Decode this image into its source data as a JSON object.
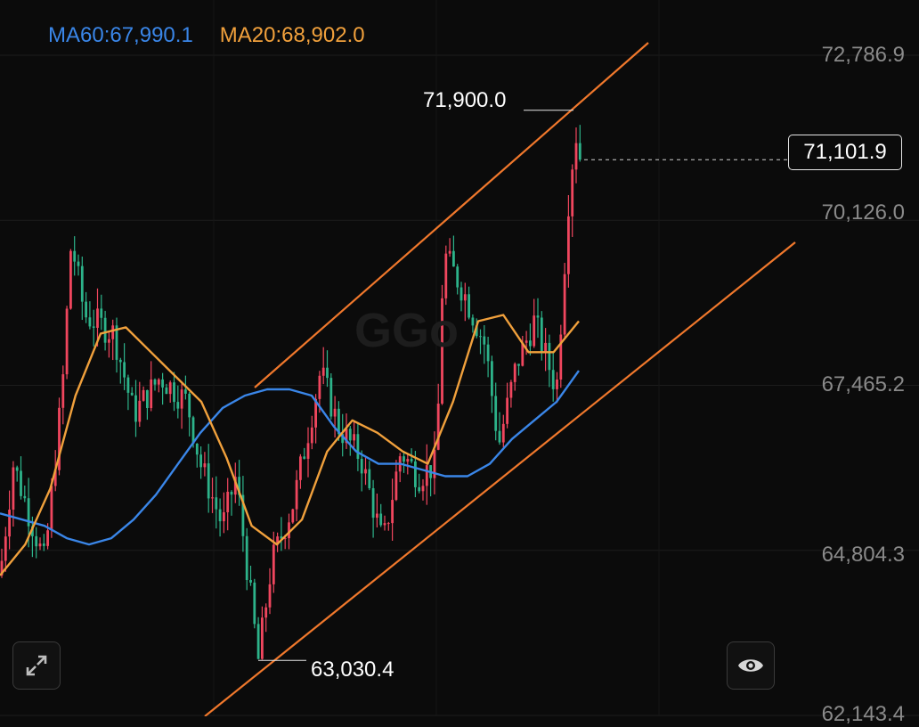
{
  "legend": {
    "ma60_label": "MA60:67,990.1",
    "ma20_label": "MA20:68,902.0"
  },
  "axis": {
    "ticks": [
      "72,786.9",
      "70,126.0",
      "67,465.2",
      "64,804.3",
      "62,143.4"
    ]
  },
  "current_price": "71,101.9",
  "high_label": "71,900.0",
  "low_label": "63,030.4",
  "watermark": "GGo",
  "colors": {
    "up": "#f0465e",
    "down": "#2db38a",
    "ma60": "#3a86e8",
    "ma20": "#f0a03c",
    "channel": "#f0782c"
  },
  "chart_data": {
    "type": "candlestick",
    "y_ticks": [
      72786.9,
      70126.0,
      67465.2,
      64804.3,
      62143.4
    ],
    "ylim": [
      62143.4,
      72786.9
    ],
    "grid": true,
    "legend_placement": "top-left",
    "current_price": 71101.9,
    "annotations": [
      {
        "label": "71,900.0",
        "value": 71900.0
      },
      {
        "label": "63,030.4",
        "value": 63030.4
      }
    ],
    "series": [
      {
        "name": "MA60",
        "value": 67990.1,
        "values": [
          65400,
          65300,
          65200,
          65000,
          64900,
          65000,
          65300,
          65700,
          66200,
          66700,
          67100,
          67300,
          67400,
          67400,
          67300,
          66800,
          66400,
          66200,
          66200,
          66100,
          66000,
          66000,
          66200,
          66600,
          66900,
          67200,
          67700
        ]
      },
      {
        "name": "MA20",
        "value": 68902.0,
        "values": [
          64400,
          64900,
          65800,
          67300,
          68300,
          68400,
          68000,
          67600,
          67200,
          66300,
          65200,
          64900,
          65300,
          66400,
          66900,
          66700,
          66400,
          66200,
          67200,
          68500,
          68600,
          68000,
          68000,
          68500
        ]
      }
    ]
  }
}
